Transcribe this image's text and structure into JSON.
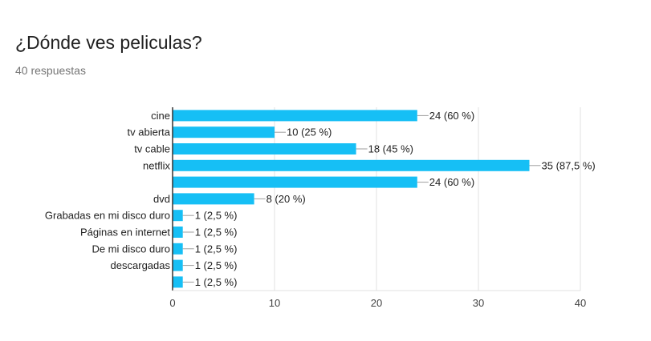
{
  "title": "¿Dónde ves peliculas?",
  "subtitle": "40 respuestas",
  "colors": {
    "bar": "#16bff5",
    "grid": "#e0e0e0",
    "axis": "#333333",
    "leader": "#9e9e9e"
  },
  "chart_data": {
    "type": "bar",
    "orientation": "horizontal",
    "categories": [
      "cine",
      "tv abierta",
      "tv cable",
      "netflix",
      "",
      "dvd",
      "Grabadas en mi disco duro",
      "Páginas en internet",
      "De mi disco duro",
      "descargadas",
      ""
    ],
    "values": [
      24,
      10,
      18,
      35,
      24,
      8,
      1,
      1,
      1,
      1,
      1
    ],
    "data_labels": [
      "24 (60 %)",
      "10 (25 %)",
      "18 (45 %)",
      "35 (87,5 %)",
      "24 (60 %)",
      "8 (20 %)",
      "1 (2,5 %)",
      "1 (2,5 %)",
      "1 (2,5 %)",
      "1 (2,5 %)",
      "1 (2,5 %)"
    ],
    "xlim": [
      0,
      40
    ],
    "xticks": [
      "0",
      "10",
      "20",
      "30",
      "40"
    ],
    "grid": true
  }
}
